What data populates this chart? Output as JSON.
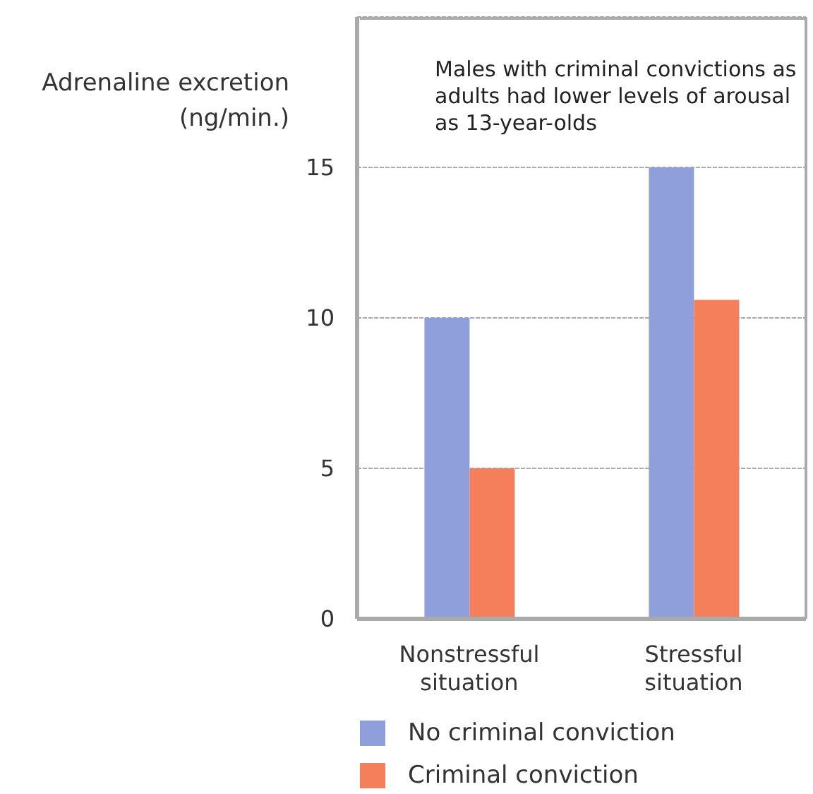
{
  "chart_data": {
    "type": "bar",
    "title": "Males with criminal convictions as adults had lower levels of arousal as 13-year-olds",
    "ylabel": "Adrenaline excretion (ng/min.)",
    "categories": [
      "Nonstressful situation",
      "Stressful situation"
    ],
    "series": [
      {
        "name": "No criminal conviction",
        "color": "#8f9fdc",
        "values": [
          10,
          15
        ]
      },
      {
        "name": "Criminal conviction",
        "color": "#f47f5a",
        "values": [
          5,
          10.6
        ]
      }
    ],
    "ylim": [
      0,
      20
    ],
    "yticks": [
      0,
      5,
      10,
      15
    ],
    "grid": "y",
    "legend": "bottom"
  }
}
